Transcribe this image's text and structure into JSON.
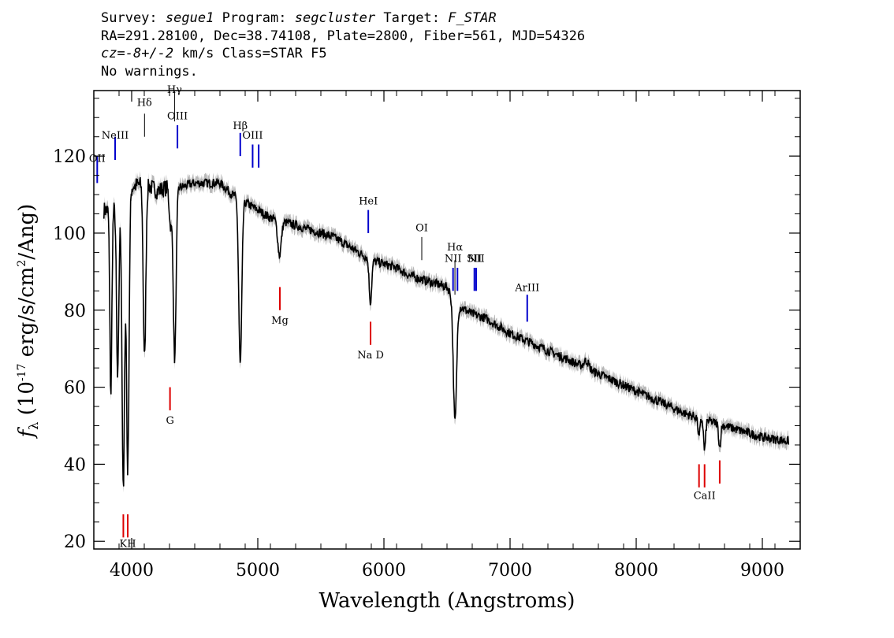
{
  "header": {
    "line1": {
      "survey_label": "Survey:",
      "survey": "segue1",
      "program_label": "Program:",
      "program": "segcluster",
      "target_label": "Target:",
      "target": "F_STAR"
    },
    "line2": "RA=291.28100, Dec=38.74108, Plate=2800, Fiber=561, MJD=54326",
    "line3": {
      "cz_label": "cz=",
      "cz_value": "-8+/-2",
      "rest": "km/s Class=STAR F5"
    },
    "line4": "No warnings."
  },
  "chart_data": {
    "type": "line",
    "title": "",
    "xlabel": "Wavelength (Angstroms)",
    "ylabel_parts": {
      "f": "f",
      "sub": "λ",
      "open": " (10",
      "exp": "-17",
      "mid": " erg/s/cm",
      "exp2": "2",
      "close": "/Ang)"
    },
    "xlim": [
      3700,
      9300
    ],
    "ylim": [
      18,
      137
    ],
    "x_ticks": [
      4000,
      5000,
      6000,
      7000,
      8000,
      9000
    ],
    "x_tick_labels": [
      "4000",
      "5000",
      "6000",
      "7000",
      "8000",
      "9000"
    ],
    "y_ticks": [
      20,
      40,
      60,
      80,
      100,
      120
    ],
    "y_tick_labels": [
      "20",
      "40",
      "60",
      "80",
      "100",
      "120"
    ],
    "grid": false,
    "colors": {
      "flux": "#000000",
      "error_band": "#b8b8b8",
      "emission": "#0000cc",
      "absorption": "#dd0000",
      "neutral": "#000000"
    },
    "continuum": [
      [
        3800,
        106
      ],
      [
        3900,
        107
      ],
      [
        4000,
        112
      ],
      [
        4100,
        113
      ],
      [
        4200,
        111
      ],
      [
        4300,
        112
      ],
      [
        4400,
        112
      ],
      [
        4500,
        113
      ],
      [
        4600,
        113
      ],
      [
        4700,
        113
      ],
      [
        4800,
        110
      ],
      [
        4900,
        108
      ],
      [
        5000,
        106
      ],
      [
        5100,
        104
      ],
      [
        5200,
        103
      ],
      [
        5300,
        102
      ],
      [
        5400,
        101
      ],
      [
        5500,
        100
      ],
      [
        5600,
        99
      ],
      [
        5700,
        97
      ],
      [
        5800,
        95
      ],
      [
        5900,
        93
      ],
      [
        6000,
        92
      ],
      [
        6100,
        91
      ],
      [
        6200,
        89
      ],
      [
        6300,
        88
      ],
      [
        6400,
        87
      ],
      [
        6500,
        86
      ],
      [
        6600,
        81
      ],
      [
        6700,
        79
      ],
      [
        6800,
        78
      ],
      [
        6900,
        76
      ],
      [
        7000,
        74
      ],
      [
        7200,
        71
      ],
      [
        7400,
        68
      ],
      [
        7600,
        65
      ],
      [
        7800,
        62
      ],
      [
        8000,
        59
      ],
      [
        8200,
        56
      ],
      [
        8400,
        53
      ],
      [
        8600,
        51
      ],
      [
        8800,
        49
      ],
      [
        9000,
        47
      ],
      [
        9200,
        46
      ]
    ],
    "absorption_features": [
      {
        "center": 3835,
        "depth": 48,
        "width": 8
      },
      {
        "center": 3889,
        "depth": 45,
        "width": 9
      },
      {
        "center": 3934,
        "depth": 76,
        "width": 10
      },
      {
        "center": 3969,
        "depth": 72,
        "width": 10
      },
      {
        "center": 4102,
        "depth": 46,
        "width": 10
      },
      {
        "center": 4308,
        "depth": 10,
        "width": 10
      },
      {
        "center": 4341,
        "depth": 45,
        "width": 11
      },
      {
        "center": 4861,
        "depth": 43,
        "width": 12
      },
      {
        "center": 5172,
        "depth": 9,
        "width": 14
      },
      {
        "center": 5893,
        "depth": 11,
        "width": 10
      },
      {
        "center": 6563,
        "depth": 32,
        "width": 13
      },
      {
        "center": 7605,
        "depth": -2,
        "width": 18
      },
      {
        "center": 8498,
        "depth": 5,
        "width": 8
      },
      {
        "center": 8542,
        "depth": 8,
        "width": 8
      },
      {
        "center": 8662,
        "depth": 6,
        "width": 8
      }
    ],
    "line_markers": [
      {
        "label": "OII",
        "x": 3727,
        "color": "emission",
        "y_top": 120,
        "y_bot": 113,
        "label_y": 118.5
      },
      {
        "label": "NeIII",
        "x": 3869,
        "color": "emission",
        "y_top": 125,
        "y_bot": 119,
        "label_y": 124.5
      },
      {
        "label": "Hδ",
        "x": 4102,
        "color": "neutral",
        "y_top": 131,
        "y_bot": 125,
        "label_y": 133
      },
      {
        "label": "Hγ",
        "x": 4340,
        "color": "neutral",
        "y_top": 137,
        "y_bot": 129,
        "label_y": 137
      },
      {
        "label": "OIII",
        "x": 4363,
        "color": "emission",
        "y_top": 128,
        "y_bot": 122,
        "label_y": 129.5
      },
      {
        "label": "Hβ",
        "x": 4861,
        "color": "emission",
        "y_top": 126,
        "y_bot": 120,
        "label_y": 127
      },
      {
        "label": "OIII",
        "x": 4959,
        "color": "emission",
        "y_top": 123,
        "y_bot": 117,
        "label_y": 124.5
      },
      {
        "label": "",
        "x": 5007,
        "color": "emission",
        "y_top": 123,
        "y_bot": 117,
        "label_y": 0
      },
      {
        "label": "HeI",
        "x": 5876,
        "color": "emission",
        "y_top": 106,
        "y_bot": 100,
        "label_y": 107.5
      },
      {
        "label": "OI",
        "x": 6300,
        "color": "neutral",
        "y_top": 99,
        "y_bot": 93,
        "label_y": 100.5
      },
      {
        "label": "NII",
        "x": 6548,
        "color": "emission",
        "y_top": 91,
        "y_bot": 85,
        "label_y": 92.5
      },
      {
        "label": "Hα",
        "x": 6563,
        "color": "neutral",
        "y_top": 93,
        "y_bot": 84,
        "label_y": 95.5
      },
      {
        "label": "",
        "x": 6583,
        "color": "emission",
        "y_top": 91,
        "y_bot": 85,
        "label_y": 0
      },
      {
        "label": "SII",
        "x": 6717,
        "color": "emission",
        "y_top": 91,
        "y_bot": 85,
        "label_y": 92.5
      },
      {
        "label": "NII",
        "x": 6731,
        "color": "emission",
        "y_top": 91,
        "y_bot": 85,
        "label_y": 92.5
      },
      {
        "label": "ArIII",
        "x": 7136,
        "color": "emission",
        "y_top": 84,
        "y_bot": 77,
        "label_y": 85
      },
      {
        "label": "Mg",
        "x": 5175,
        "color": "absorption",
        "y_top": 86,
        "y_bot": 80,
        "label_y": 76.5
      },
      {
        "label": "Na  D",
        "x": 5894,
        "color": "absorption",
        "y_top": 77,
        "y_bot": 71,
        "label_y": 67.5
      },
      {
        "label": "G",
        "x": 4304,
        "color": "absorption",
        "y_top": 60,
        "y_bot": 54,
        "label_y": 50.5
      },
      {
        "label": "",
        "x": 3934,
        "color": "absorption",
        "y_top": 27,
        "y_bot": 21,
        "label_y": 0
      },
      {
        "label": "KH",
        "x": 3969,
        "color": "absorption",
        "y_top": 27,
        "y_bot": 21,
        "label_y": 18.5
      },
      {
        "label": "",
        "x": 8498,
        "color": "absorption",
        "y_top": 40,
        "y_bot": 34,
        "label_y": 0
      },
      {
        "label": "CaII",
        "x": 8542,
        "color": "absorption",
        "y_top": 40,
        "y_bot": 34,
        "label_y": 31
      },
      {
        "label": "",
        "x": 8662,
        "color": "absorption",
        "y_top": 41,
        "y_bot": 35,
        "label_y": 0
      }
    ]
  }
}
